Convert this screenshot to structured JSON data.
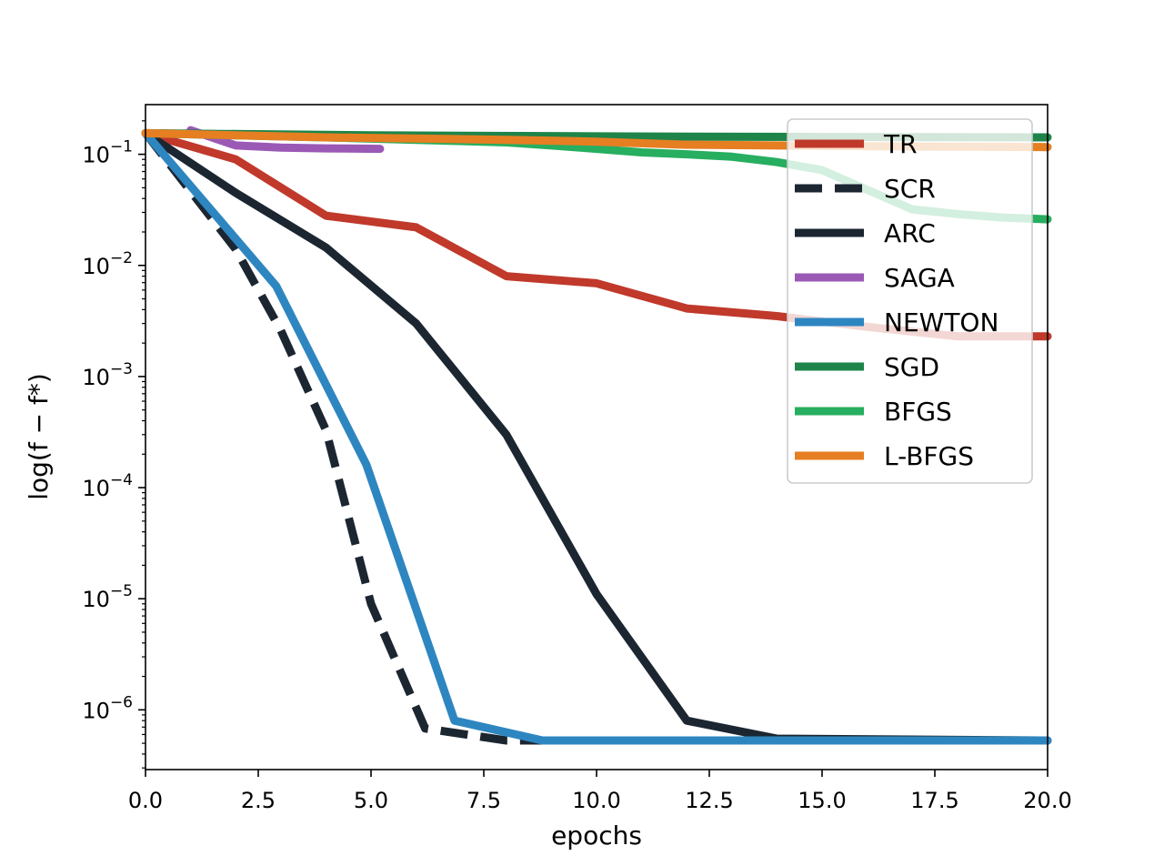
{
  "chart_data": {
    "type": "line",
    "xlabel": "epochs",
    "ylabel": "log(f − f*)",
    "yscale": "log",
    "xlim": [
      0,
      20
    ],
    "ylim": [
      2.9e-07,
      0.28
    ],
    "x_ticks": [
      0,
      2.5,
      5,
      7.5,
      10,
      12.5,
      15,
      17.5,
      20
    ],
    "x_tick_labels": [
      "0.0",
      "2.5",
      "5.0",
      "7.5",
      "10.0",
      "12.5",
      "15.0",
      "17.5",
      "20.0"
    ],
    "y_ticks": [
      0.1,
      0.01,
      0.001,
      0.0001,
      1e-05,
      1e-06
    ],
    "y_tick_labels": [
      {
        "base": "10",
        "exp": "−1"
      },
      {
        "base": "10",
        "exp": "−2"
      },
      {
        "base": "10",
        "exp": "−3"
      },
      {
        "base": "10",
        "exp": "−4"
      },
      {
        "base": "10",
        "exp": "−5"
      },
      {
        "base": "10",
        "exp": "−6"
      }
    ],
    "legend_position": "top-right",
    "series": [
      {
        "name": "TR",
        "color": "#c0392b",
        "dash": "solid",
        "x": [
          0,
          2,
          4,
          6,
          8,
          10,
          12,
          14,
          16,
          18,
          20
        ],
        "y": [
          0.155,
          0.09,
          0.028,
          0.022,
          0.008,
          0.0069,
          0.0041,
          0.0035,
          0.0028,
          0.0023,
          0.0023
        ]
      },
      {
        "name": "SCR",
        "color": "#1b2631",
        "dash": "dashed",
        "x": [
          0,
          2,
          3,
          4,
          5,
          6.2,
          8,
          8.8,
          20
        ],
        "y": [
          0.155,
          0.014,
          0.0026,
          0.00033,
          9e-06,
          6.8e-07,
          5.3e-07,
          5.3e-07,
          5.3e-07
        ]
      },
      {
        "name": "ARC",
        "color": "#1b2631",
        "dash": "solid",
        "x": [
          0,
          2,
          4,
          6,
          8,
          10,
          12,
          14,
          20
        ],
        "y": [
          0.155,
          0.045,
          0.0145,
          0.003,
          0.0003,
          1.1e-05,
          8e-07,
          5.5e-07,
          5.3e-07
        ]
      },
      {
        "name": "SAGA",
        "color": "#9b59b6",
        "dash": "solid",
        "x": [
          1,
          2,
          3,
          4,
          5.2
        ],
        "y": [
          0.165,
          0.12,
          0.115,
          0.113,
          0.112
        ]
      },
      {
        "name": "NEWTON",
        "color": "#2e86c1",
        "dash": "solid",
        "x": [
          0,
          2.9,
          4.9,
          6.85,
          8.8,
          20
        ],
        "y": [
          0.155,
          0.0065,
          0.00016,
          8e-07,
          5.3e-07,
          5.3e-07
        ]
      },
      {
        "name": "SGD",
        "color": "#1e8449",
        "dash": "solid",
        "x": [
          0,
          5,
          10,
          15,
          20
        ],
        "y": [
          0.155,
          0.148,
          0.145,
          0.143,
          0.142
        ]
      },
      {
        "name": "BFGS",
        "color": "#27ae60",
        "dash": "solid",
        "x": [
          0,
          2,
          4,
          6,
          8,
          9,
          10,
          11,
          12,
          13,
          14,
          15,
          16,
          17,
          18,
          19,
          20
        ],
        "y": [
          0.155,
          0.148,
          0.142,
          0.135,
          0.128,
          0.12,
          0.112,
          0.104,
          0.1,
          0.095,
          0.085,
          0.072,
          0.048,
          0.032,
          0.029,
          0.027,
          0.026
        ]
      },
      {
        "name": "L-BFGS",
        "color": "#e67e22",
        "dash": "solid",
        "x": [
          0,
          4,
          8,
          10,
          12,
          14,
          16,
          20
        ],
        "y": [
          0.155,
          0.142,
          0.135,
          0.13,
          0.122,
          0.12,
          0.118,
          0.116
        ]
      }
    ]
  }
}
